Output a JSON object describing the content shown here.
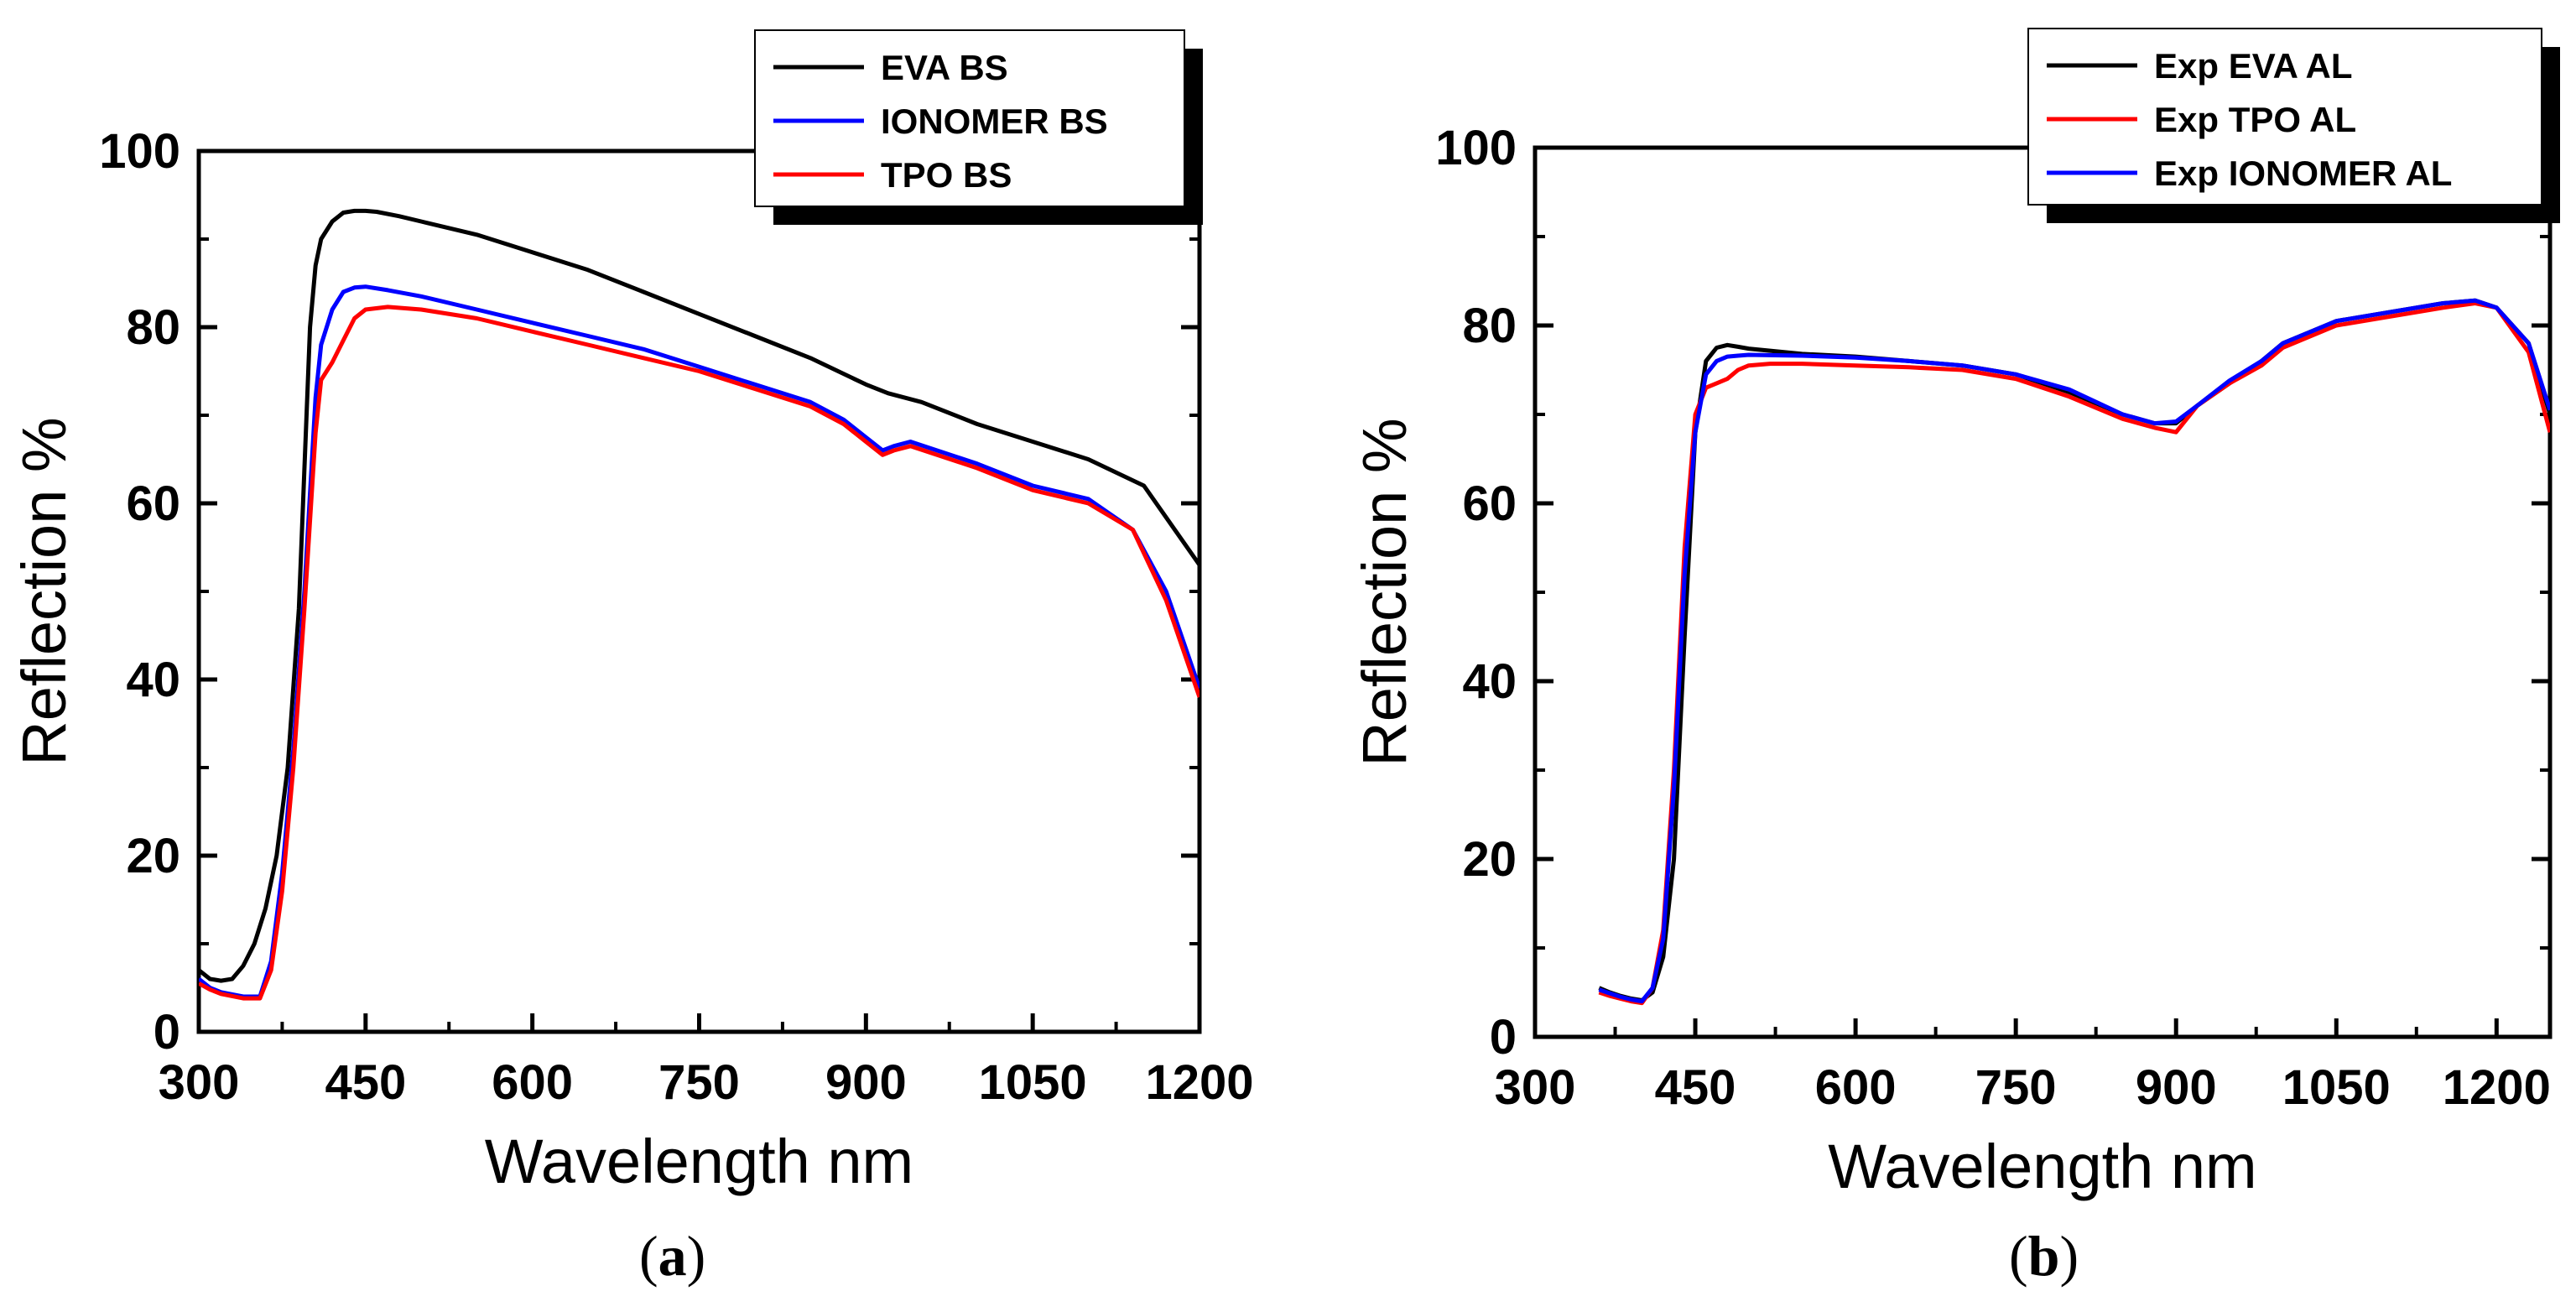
{
  "chart_data": [
    {
      "type": "line",
      "panel": "a",
      "caption_open": "(",
      "caption_letter": "a",
      "caption_close": ")",
      "xlabel": "Wavelength nm",
      "ylabel": "Reflection %",
      "xlim": [
        300,
        1200
      ],
      "ylim": [
        0,
        100
      ],
      "xticks": [
        300,
        450,
        600,
        750,
        900,
        1050,
        1200
      ],
      "yticks": [
        0,
        20,
        40,
        60,
        80,
        100
      ],
      "legend_position": "top-right",
      "series": [
        {
          "name": "EVA BS",
          "color": "#000000",
          "x": [
            300,
            310,
            320,
            330,
            340,
            350,
            360,
            370,
            380,
            390,
            400,
            405,
            410,
            420,
            430,
            440,
            450,
            460,
            480,
            500,
            550,
            600,
            650,
            700,
            750,
            800,
            850,
            900,
            920,
            950,
            1000,
            1050,
            1100,
            1150,
            1200
          ],
          "y": [
            7,
            6,
            5.8,
            6,
            7.5,
            10,
            14,
            20,
            30,
            48,
            80,
            87,
            90,
            92,
            93,
            93.2,
            93.2,
            93.1,
            92.6,
            92,
            90.5,
            88.5,
            86.5,
            84,
            81.5,
            79,
            76.5,
            73.5,
            72.5,
            71.5,
            69,
            67,
            65,
            62,
            53
          ]
        },
        {
          "name": "IONOMER BS",
          "color": "#0000ff",
          "x": [
            300,
            310,
            320,
            340,
            355,
            365,
            375,
            385,
            395,
            405,
            410,
            420,
            430,
            440,
            450,
            470,
            500,
            550,
            600,
            650,
            700,
            750,
            800,
            850,
            880,
            900,
            915,
            925,
            940,
            1000,
            1050,
            1100,
            1140,
            1170,
            1200
          ],
          "y": [
            6,
            5,
            4.5,
            4,
            4,
            8,
            18,
            32,
            50,
            72,
            78,
            82,
            84,
            84.5,
            84.6,
            84.2,
            83.5,
            82,
            80.5,
            79,
            77.5,
            75.5,
            73.5,
            71.5,
            69.5,
            67.5,
            66,
            66.5,
            67,
            64.5,
            62,
            60.5,
            57,
            50,
            39
          ]
        },
        {
          "name": "TPO BS",
          "color": "#ff0000",
          "x": [
            300,
            310,
            320,
            340,
            355,
            365,
            375,
            385,
            395,
            405,
            410,
            420,
            430,
            440,
            450,
            470,
            500,
            550,
            600,
            650,
            700,
            750,
            800,
            850,
            880,
            900,
            915,
            925,
            940,
            1000,
            1050,
            1100,
            1140,
            1170,
            1200
          ],
          "y": [
            5.5,
            4.8,
            4.3,
            3.8,
            3.8,
            7,
            16,
            30,
            48,
            68,
            74,
            76,
            78.5,
            81,
            82,
            82.3,
            82,
            81,
            79.5,
            78,
            76.5,
            75,
            73,
            71,
            69,
            67,
            65.5,
            66,
            66.5,
            64,
            61.5,
            60,
            57,
            49,
            38
          ]
        }
      ]
    },
    {
      "type": "line",
      "panel": "b",
      "caption_open": "(",
      "caption_letter": "b",
      "caption_close": ")",
      "xlabel": "Wavelength nm",
      "ylabel": "Reflection %",
      "xlim": [
        300,
        1250
      ],
      "ylim": [
        0,
        100
      ],
      "xticks": [
        300,
        450,
        600,
        750,
        900,
        1050,
        1200
      ],
      "yticks": [
        0,
        20,
        40,
        60,
        80,
        100
      ],
      "legend_position": "top-right",
      "series": [
        {
          "name": "Exp EVA AL",
          "color": "#000000",
          "x": [
            360,
            370,
            380,
            390,
            400,
            410,
            420,
            430,
            440,
            450,
            460,
            470,
            480,
            490,
            500,
            550,
            600,
            650,
            700,
            750,
            800,
            850,
            880,
            900,
            920,
            950,
            980,
            1000,
            1050,
            1100,
            1150,
            1180,
            1200,
            1230,
            1250
          ],
          "y": [
            5.5,
            5,
            4.6,
            4.3,
            4.1,
            5,
            9,
            20,
            45,
            68,
            76,
            77.5,
            77.8,
            77.6,
            77.4,
            76.8,
            76.5,
            76,
            75.5,
            74.5,
            72.5,
            70,
            69,
            69,
            71,
            73.5,
            76,
            78,
            80.5,
            81.5,
            82.5,
            82.8,
            82,
            78,
            70
          ]
        },
        {
          "name": "Exp TPO AL",
          "color": "#ff0000",
          "x": [
            360,
            370,
            380,
            390,
            400,
            410,
            420,
            430,
            440,
            450,
            460,
            470,
            480,
            490,
            500,
            520,
            550,
            600,
            650,
            700,
            750,
            800,
            850,
            880,
            900,
            920,
            950,
            980,
            1000,
            1050,
            1100,
            1150,
            1180,
            1200,
            1230,
            1250
          ],
          "y": [
            5,
            4.6,
            4.3,
            4,
            3.8,
            5.5,
            12,
            30,
            55,
            70,
            73,
            73.5,
            74,
            75,
            75.5,
            75.7,
            75.7,
            75.5,
            75.3,
            75,
            74,
            72,
            69.5,
            68.5,
            68,
            71,
            73.5,
            75.5,
            77.5,
            80,
            81,
            82,
            82.5,
            82,
            77,
            68
          ]
        },
        {
          "name": "Exp IONOMER AL",
          "color": "#0000ff",
          "x": [
            360,
            370,
            380,
            390,
            400,
            410,
            420,
            430,
            440,
            450,
            460,
            470,
            480,
            490,
            500,
            550,
            600,
            650,
            700,
            750,
            800,
            850,
            880,
            900,
            920,
            950,
            980,
            1000,
            1050,
            1100,
            1150,
            1180,
            1200,
            1230,
            1250
          ],
          "y": [
            5.3,
            4.9,
            4.5,
            4.2,
            4.0,
            5.5,
            11,
            28,
            52,
            68,
            74.5,
            76,
            76.5,
            76.6,
            76.7,
            76.6,
            76.4,
            76,
            75.5,
            74.5,
            72.8,
            70,
            69,
            69.2,
            71,
            73.8,
            76,
            78,
            80.5,
            81.5,
            82.5,
            82.8,
            82,
            78,
            70.5
          ]
        }
      ]
    }
  ]
}
